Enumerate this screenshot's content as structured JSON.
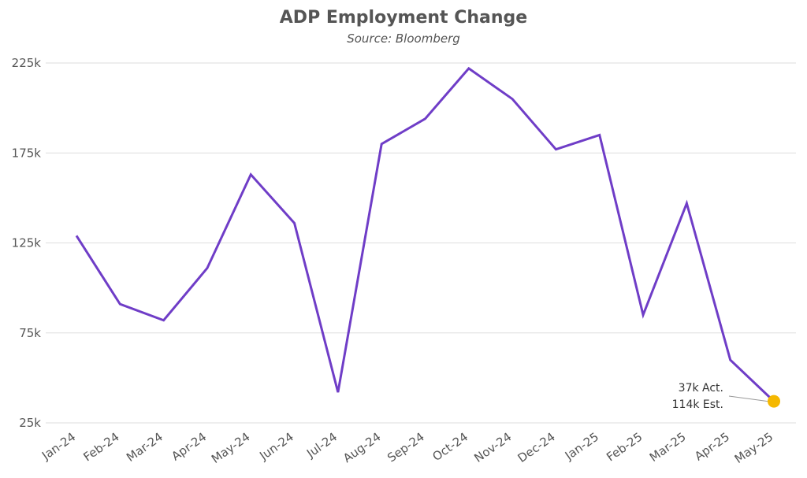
{
  "chart_data": {
    "type": "line",
    "title": "ADP Employment Change",
    "subtitle": "Source: Bloomberg",
    "xlabel": "",
    "ylabel": "",
    "categories": [
      "Jan-24",
      "Feb-24",
      "Mar-24",
      "Apr-24",
      "May-24",
      "Jun-24",
      "Jul-24",
      "Aug-24",
      "Sep-24",
      "Oct-24",
      "Nov-24",
      "Dec-24",
      "Jan-25",
      "Feb-25",
      "Mar-25",
      "Apr-25",
      "May-25"
    ],
    "series": [
      {
        "values": [
          129,
          91,
          82,
          111,
          163,
          136,
          42,
          180,
          194,
          222,
          205,
          177,
          185,
          85,
          147,
          60,
          37
        ]
      }
    ],
    "ylim": [
      25,
      225
    ],
    "yticks": [
      25,
      75,
      125,
      175,
      225
    ],
    "ytick_labels": [
      "25k",
      "75k",
      "125k",
      "175k",
      "225k"
    ],
    "grid": true,
    "line_color": "#6f3dc7",
    "marker_color": "#f5b800",
    "annotation": {
      "category": "May-25",
      "line1": "37k Act.",
      "line2": "114k Est."
    }
  }
}
